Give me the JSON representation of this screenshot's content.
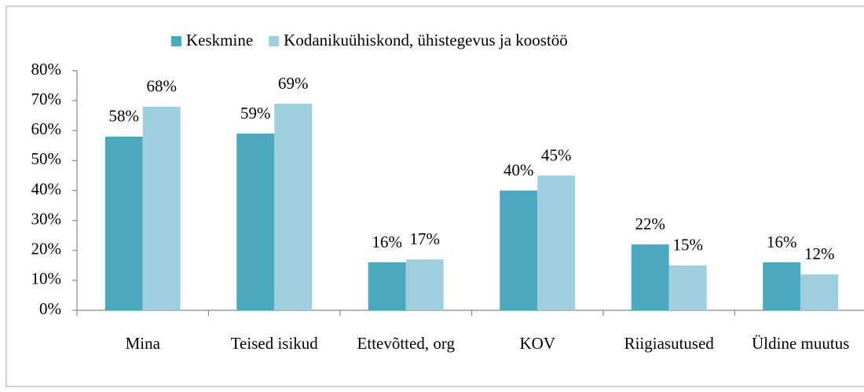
{
  "chart_data": {
    "type": "bar",
    "categories": [
      "Mina",
      "Teised isikud",
      "Ettevõtted, org",
      "KOV",
      "Riigiasutused",
      "Üldine muutus"
    ],
    "series": [
      {
        "name": "Keskmine",
        "color": "#4ba8bf",
        "values": [
          58,
          59,
          16,
          40,
          22,
          16
        ],
        "value_labels": [
          "58%",
          "59%",
          "16%",
          "40%",
          "22%",
          "16%"
        ]
      },
      {
        "name": "Kodanikuühiskond, ühistegevus ja koostöö",
        "color": "#9fcfdf",
        "values": [
          68,
          69,
          17,
          45,
          15,
          12
        ],
        "value_labels": [
          "68%",
          "69%",
          "17%",
          "45%",
          "15%",
          "12%"
        ]
      }
    ],
    "ylim": [
      0,
      80
    ],
    "yticks": [
      {
        "value": 0,
        "label": "0%"
      },
      {
        "value": 10,
        "label": "10%"
      },
      {
        "value": 20,
        "label": "20%"
      },
      {
        "value": 30,
        "label": "30%"
      },
      {
        "value": 40,
        "label": "40%"
      },
      {
        "value": 50,
        "label": "50%"
      },
      {
        "value": 60,
        "label": "60%"
      },
      {
        "value": 70,
        "label": "70%"
      },
      {
        "value": 80,
        "label": "80%"
      }
    ],
    "legend": "top",
    "grid": false
  }
}
